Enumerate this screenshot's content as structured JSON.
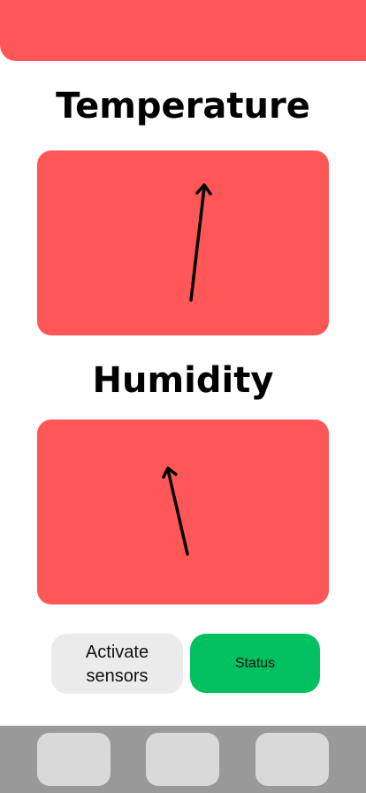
{
  "theme": {
    "primary": "#ff5757",
    "accent_green": "#00c060",
    "nav_bar": "#999999",
    "nav_button": "#d9d9d9",
    "secondary_button": "#ebebeb"
  },
  "sections": {
    "temperature": {
      "title": "Temperature",
      "gauge_icon": "needle-arrow-icon"
    },
    "humidity": {
      "title": "Humidity",
      "gauge_icon": "needle-arrow-icon"
    }
  },
  "actions": {
    "activate_label": "Activate\nsensors",
    "status_label": "Status"
  },
  "bottom_nav": {
    "items": [
      "",
      "",
      ""
    ]
  }
}
